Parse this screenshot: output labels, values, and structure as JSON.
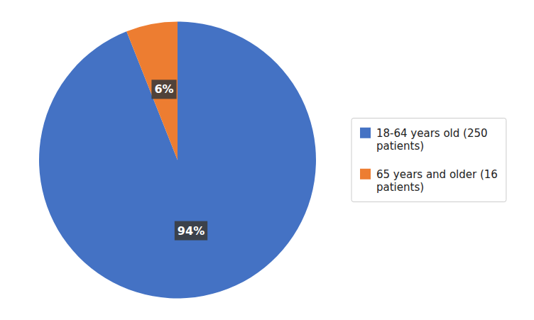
{
  "chart_data": {
    "type": "pie",
    "categories": [
      "18-64 years old (250\npatients)",
      "65 years and older (16\npatients)"
    ],
    "values": [
      94,
      6
    ],
    "value_labels": [
      "94%",
      "6%"
    ],
    "colors": [
      "#4472C4",
      "#ED7D31"
    ],
    "data_labels": true,
    "legend": "right"
  }
}
